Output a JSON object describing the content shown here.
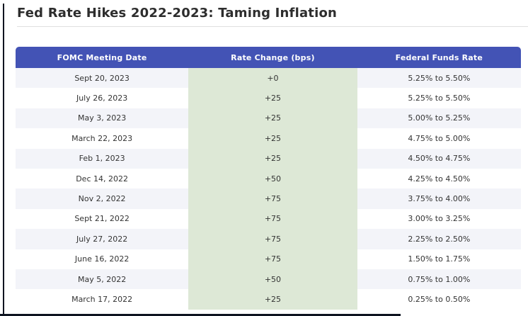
{
  "page": {
    "title": "Fed Rate Hikes 2022-2023: Taming Inflation"
  },
  "table": {
    "columns": [
      "FOMC Meeting Date",
      "Rate Change (bps)",
      "Federal Funds Rate"
    ],
    "rows": [
      {
        "date": "Sept 20, 2023",
        "change": "+0",
        "rate": "5.25% to 5.50%"
      },
      {
        "date": "July 26, 2023",
        "change": "+25",
        "rate": "5.25% to 5.50%"
      },
      {
        "date": "May 3, 2023",
        "change": "+25",
        "rate": "5.00% to 5.25%"
      },
      {
        "date": "March 22, 2023",
        "change": "+25",
        "rate": "4.75% to 5.00%"
      },
      {
        "date": "Feb 1, 2023",
        "change": "+25",
        "rate": "4.50% to 4.75%"
      },
      {
        "date": "Dec 14, 2022",
        "change": "+50",
        "rate": "4.25% to 4.50%"
      },
      {
        "date": "Nov 2, 2022",
        "change": "+75",
        "rate": "3.75% to 4.00%"
      },
      {
        "date": "Sept 21, 2022",
        "change": "+75",
        "rate": "3.00% to 3.25%"
      },
      {
        "date": "July 27, 2022",
        "change": "+75",
        "rate": "2.25% to 2.50%"
      },
      {
        "date": "June 16, 2022",
        "change": "+75",
        "rate": "1.50% to 1.75%"
      },
      {
        "date": "May 5, 2022",
        "change": "+50",
        "rate": "0.75% to 1.00%"
      },
      {
        "date": "March 17, 2022",
        "change": "+25",
        "rate": "0.25% to 0.50%"
      }
    ]
  },
  "colors": {
    "header_bg": "#4353b5",
    "header_text": "#ffffff",
    "highlight_column_bg": "#dde8d6",
    "row_alt_bg": "#f3f4f9",
    "row_base_bg": "#ffffff",
    "title_text": "#2d2d2d",
    "body_text": "#333333",
    "frame_edge": "#0e1420"
  },
  "chart_data": {
    "type": "table",
    "title": "Fed Rate Hikes 2022-2023: Taming Inflation",
    "columns": [
      "FOMC Meeting Date",
      "Rate Change (bps)",
      "Federal Funds Rate"
    ],
    "rows": [
      [
        "Sept 20, 2023",
        "+0",
        "5.25% to 5.50%"
      ],
      [
        "July 26, 2023",
        "+25",
        "5.25% to 5.50%"
      ],
      [
        "May 3, 2023",
        "+25",
        "5.00% to 5.25%"
      ],
      [
        "March 22, 2023",
        "+25",
        "4.75% to 5.00%"
      ],
      [
        "Feb 1, 2023",
        "+25",
        "4.50% to 4.75%"
      ],
      [
        "Dec 14, 2022",
        "+50",
        "4.25% to 4.50%"
      ],
      [
        "Nov 2, 2022",
        "+75",
        "3.75% to 4.00%"
      ],
      [
        "Sept 21, 2022",
        "+75",
        "3.00% to 3.25%"
      ],
      [
        "July 27, 2022",
        "+75",
        "2.25% to 2.50%"
      ],
      [
        "June 16, 2022",
        "+75",
        "1.50% to 1.75%"
      ],
      [
        "May 5, 2022",
        "+50",
        "0.75% to 1.00%"
      ],
      [
        "March 17, 2022",
        "+25",
        "0.25% to 0.50%"
      ]
    ],
    "layout_hints": {
      "highlighted_column": "Rate Change (bps)",
      "zebra_striping": true,
      "header_style": "solid indigo banner, white bold text, rounded top corners"
    }
  }
}
